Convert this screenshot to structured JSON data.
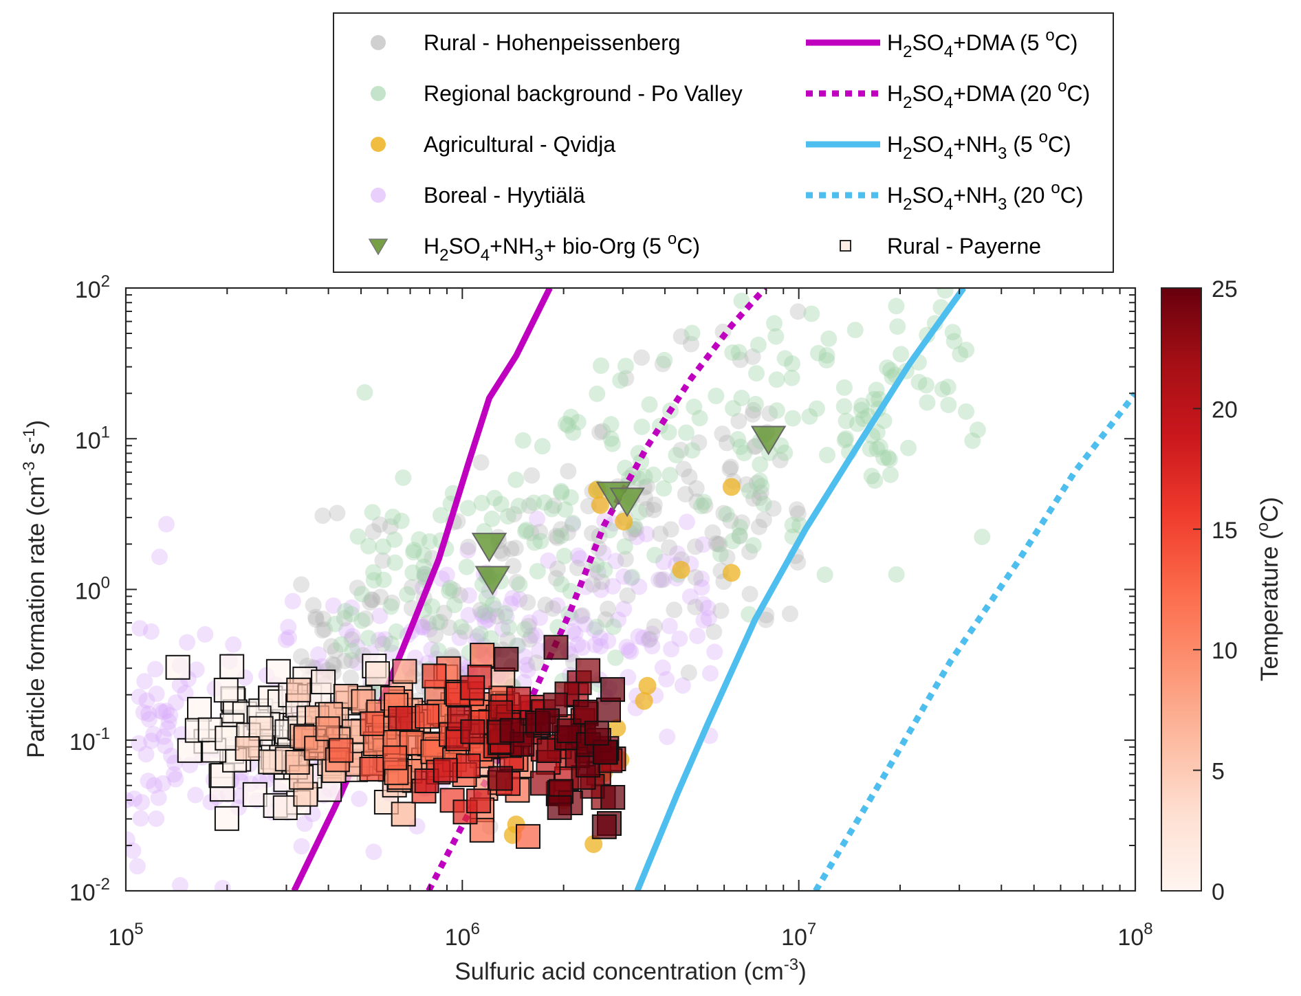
{
  "chart_data": {
    "type": "scatter",
    "title": "",
    "xlabel": "Sulfuric acid concentration (cm^-3)",
    "xlabel_parts": {
      "main": "Sulfuric acid concentration (cm",
      "sup": "-3",
      "end": ")"
    },
    "ylabel": "Particle formation rate (cm^-3 s^-1)",
    "ylabel_parts": {
      "main": "Particle formation rate (cm",
      "sup1": "-3",
      "mid": " s",
      "sup2": "-1",
      "end": ")"
    },
    "xscale": "log",
    "yscale": "log",
    "xlim": [
      100000,
      100000000
    ],
    "ylim": [
      0.01,
      100
    ],
    "grid": false,
    "legend_placement": "top (outside, above axes)",
    "xticks": [
      {
        "value": 100000,
        "base": "10",
        "exp": "5"
      },
      {
        "value": 1000000,
        "base": "10",
        "exp": "6"
      },
      {
        "value": 10000000,
        "base": "10",
        "exp": "7"
      },
      {
        "value": 100000000,
        "base": "10",
        "exp": "8"
      }
    ],
    "yticks": [
      {
        "value": 0.01,
        "base": "10",
        "exp": "-2"
      },
      {
        "value": 0.1,
        "base": "10",
        "exp": "-1"
      },
      {
        "value": 1,
        "base": "10",
        "exp": "0"
      },
      {
        "value": 10,
        "base": "10",
        "exp": "1"
      },
      {
        "value": 100,
        "base": "10",
        "exp": "2"
      }
    ],
    "colorbar": {
      "label": "Temperature (oC)",
      "label_parts": {
        "main": "Temperature (",
        "sup": "o",
        "end": "C)"
      },
      "range": [
        0,
        25
      ],
      "ticks": [
        "0",
        "5",
        "10",
        "15",
        "20",
        "25"
      ],
      "colormap": [
        "#fff5f0",
        "#fee0d2",
        "#fcbba1",
        "#fc9272",
        "#fb6a4a",
        "#ef3b2c",
        "#cb181d",
        "#a50f15",
        "#67000d"
      ]
    },
    "legend": [
      {
        "label": "Rural - Hohenpeissenberg",
        "marker": "circle",
        "color": "#c8c8c8"
      },
      {
        "label": "Regional background - Po Valley",
        "marker": "circle",
        "color": "#b9dfbf"
      },
      {
        "label": "Agricultural - Qvidja",
        "marker": "circle",
        "color": "#edb120"
      },
      {
        "label": "Boreal - Hyytiälä",
        "marker": "circle",
        "color": "#e4c7fb"
      },
      {
        "label": "H2SO4+NH3+ bio-Org (5 oC)",
        "marker": "triangle-down",
        "color": "#77a046",
        "parts": [
          "H",
          "2",
          "SO",
          "4",
          "+NH",
          "3",
          "+ bio-Org  (5 ",
          "o",
          "C)"
        ]
      },
      {
        "label": "H2SO4+DMA (5 oC)",
        "marker": "solid-line",
        "color": "#bf00bf",
        "parts": [
          "H",
          "2",
          "SO",
          "4",
          "+DMA (5 ",
          "o",
          "C)"
        ]
      },
      {
        "label": "H2SO4+DMA (20 oC)",
        "marker": "dotted-line",
        "color": "#bf00bf",
        "parts": [
          "H",
          "2",
          "SO",
          "4",
          "+DMA (20 ",
          "o",
          "C)"
        ]
      },
      {
        "label": "H2SO4+NH3 (5 oC)",
        "marker": "solid-line",
        "color": "#4dbeee",
        "parts": [
          "H",
          "2",
          "SO",
          "4",
          "+NH",
          "3",
          " (5 ",
          "o",
          "C)"
        ]
      },
      {
        "label": "H2SO4+NH3 (20 oC)",
        "marker": "dotted-line",
        "color": "#4dbeee",
        "parts": [
          "H",
          "2",
          "SO",
          "4",
          "+NH",
          "3",
          " (20 ",
          "o",
          "C)"
        ]
      },
      {
        "label": "Rural - Payerne",
        "marker": "square",
        "color": "#fdeee6"
      }
    ],
    "model_lines": [
      {
        "name": "H2SO4+DMA (5 oC)",
        "color": "#bf00bf",
        "style": "solid",
        "log10_points": [
          [
            5.5,
            -2.0
          ],
          [
            5.62,
            -1.45
          ],
          [
            5.74,
            -0.85
          ],
          [
            5.84,
            -0.3
          ],
          [
            5.93,
            0.2
          ],
          [
            6.02,
            0.85
          ],
          [
            6.08,
            1.27
          ],
          [
            6.16,
            1.55
          ],
          [
            6.26,
            2.0
          ]
        ]
      },
      {
        "name": "H2SO4+DMA (20 oC)",
        "color": "#bf00bf",
        "style": "dotted",
        "log10_points": [
          [
            5.9,
            -2.0
          ],
          [
            6.05,
            -1.35
          ],
          [
            6.2,
            -0.75
          ],
          [
            6.32,
            -0.15
          ],
          [
            6.42,
            0.42
          ],
          [
            6.55,
            0.95
          ],
          [
            6.68,
            1.4
          ],
          [
            6.8,
            1.75
          ],
          [
            6.9,
            2.0
          ]
        ]
      },
      {
        "name": "H2SO4+NH3 (5 oC)",
        "color": "#4dbeee",
        "style": "solid",
        "log10_points": [
          [
            6.52,
            -2.0
          ],
          [
            6.64,
            -1.35
          ],
          [
            6.73,
            -0.89
          ],
          [
            6.87,
            -0.2
          ],
          [
            7.02,
            0.4
          ],
          [
            7.18,
            0.97
          ],
          [
            7.33,
            1.5
          ],
          [
            7.49,
            2.0
          ]
        ]
      },
      {
        "name": "H2SO4+NH3 (20 oC)",
        "color": "#4dbeee",
        "style": "dotted",
        "log10_points": [
          [
            7.05,
            -2.0
          ],
          [
            7.25,
            -1.25
          ],
          [
            7.45,
            -0.48
          ],
          [
            7.65,
            0.18
          ],
          [
            7.82,
            0.78
          ],
          [
            8.0,
            1.3
          ]
        ]
      }
    ],
    "series_triangles": {
      "name": "H2SO4+NH3+ bio-Org (5 oC)",
      "log10_points": [
        [
          6.08,
          0.28
        ],
        [
          6.09,
          0.06
        ],
        [
          6.45,
          0.62
        ],
        [
          6.49,
          0.58
        ],
        [
          6.91,
          0.99
        ]
      ]
    },
    "series_agricultural": {
      "name": "Agricultural - Qvidja",
      "log10_points": [
        [
          6.4,
          0.66
        ],
        [
          6.48,
          0.45
        ],
        [
          6.8,
          0.68
        ],
        [
          6.8,
          0.11
        ],
        [
          6.65,
          0.13
        ],
        [
          6.55,
          -0.64
        ],
        [
          6.54,
          -0.74
        ],
        [
          6.3,
          -1.4
        ],
        [
          6.39,
          -1.69
        ],
        [
          6.16,
          -1.56
        ],
        [
          6.15,
          -1.63
        ],
        [
          6.47,
          -1.13
        ],
        [
          6.42,
          -1.22
        ],
        [
          6.46,
          -0.92
        ],
        [
          6.41,
          0.56
        ]
      ]
    },
    "series_clouds": [
      {
        "name": "Boreal - Hyytiälä",
        "color": "#d6a8fa",
        "opacity": 0.35,
        "count": 330,
        "seed": 11,
        "log10x_range": [
          5.0,
          6.75
        ],
        "log10y_center_at_min_x": -1.1,
        "log10y_slope": 0.55,
        "log10y_spread": 0.75
      },
      {
        "name": "Rural - Hohenpeissenberg",
        "color": "#b0b0b0",
        "opacity": 0.33,
        "count": 230,
        "seed": 23,
        "log10x_range": [
          5.5,
          7.0
        ],
        "log10y_center_at_min_x": -0.5,
        "log10y_slope": 0.9,
        "log10y_spread": 0.8
      },
      {
        "name": "Regional background - Po Valley",
        "color": "#9fd3a6",
        "opacity": 0.38,
        "count": 260,
        "seed": 37,
        "log10x_range": [
          5.6,
          7.55
        ],
        "log10y_center_at_min_x": -0.2,
        "log10y_slope": 0.85,
        "log10y_spread": 0.85
      }
    ],
    "series_payerne": {
      "name": "Rural - Payerne",
      "count": 300,
      "seed": 53,
      "log10x_range": [
        5.1,
        6.45
      ],
      "log10y_center": -1.0,
      "log10y_spread": 0.45,
      "temperature_range_oC": [
        0,
        25
      ],
      "note": "marker color encodes temperature; warmer points at higher concentrations"
    }
  }
}
